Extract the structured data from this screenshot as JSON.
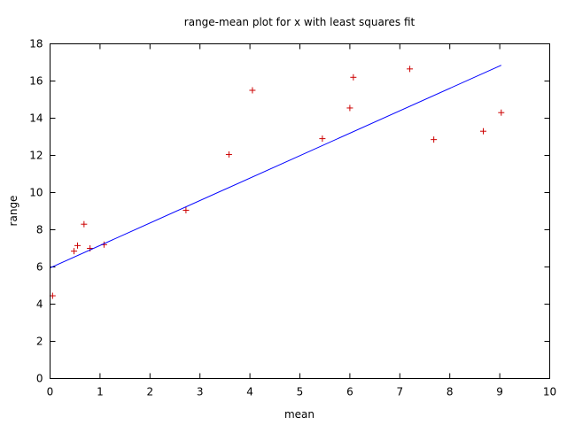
{
  "chart_data": {
    "type": "scatter",
    "title": "range-mean plot for x with least squares fit",
    "xlabel": "mean",
    "ylabel": "range",
    "xlim": [
      0,
      10
    ],
    "ylim": [
      0,
      18
    ],
    "xticks": [
      "0",
      "1",
      "2",
      "3",
      "4",
      "5",
      "6",
      "7",
      "8",
      "9",
      "10"
    ],
    "yticks": [
      "0",
      "2",
      "4",
      "6",
      "8",
      "10",
      "12",
      "14",
      "16",
      "18"
    ],
    "grid": false,
    "series": [
      {
        "marker": "+",
        "color": "#cc0000",
        "points": [
          [
            0.05,
            4.45
          ],
          [
            0.48,
            6.85
          ],
          [
            0.55,
            7.15
          ],
          [
            0.68,
            8.3
          ],
          [
            0.8,
            7.0
          ],
          [
            1.08,
            7.2
          ],
          [
            2.72,
            9.05
          ],
          [
            3.58,
            12.05
          ],
          [
            4.05,
            15.5
          ],
          [
            5.45,
            12.9
          ],
          [
            6.0,
            14.55
          ],
          [
            6.07,
            16.2
          ],
          [
            7.2,
            16.65
          ],
          [
            7.68,
            12.85
          ],
          [
            8.67,
            13.3
          ],
          [
            9.03,
            14.3
          ]
        ]
      },
      {
        "type": "line",
        "color": "#0000ff",
        "points": [
          [
            0.0,
            5.95
          ],
          [
            9.03,
            16.85
          ]
        ]
      }
    ]
  }
}
